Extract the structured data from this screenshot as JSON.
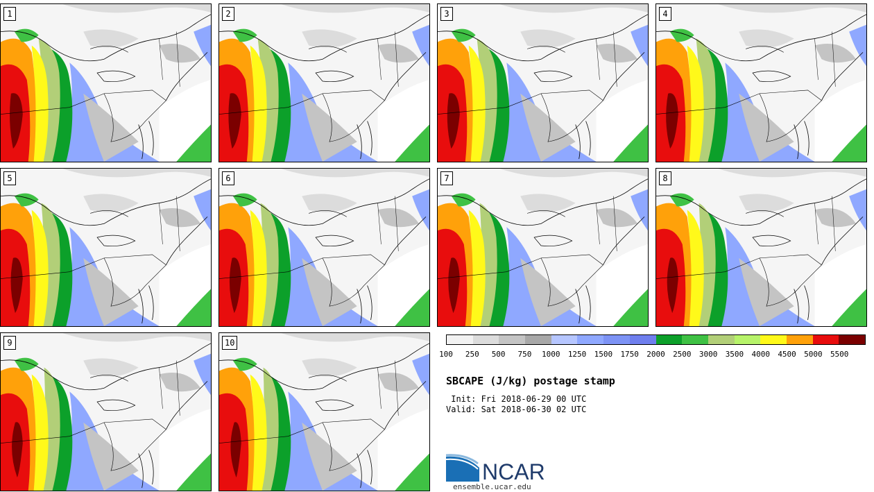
{
  "panels": [
    {
      "label": "1"
    },
    {
      "label": "2"
    },
    {
      "label": "3"
    },
    {
      "label": "4"
    },
    {
      "label": "5"
    },
    {
      "label": "6"
    },
    {
      "label": "7"
    },
    {
      "label": "8"
    },
    {
      "label": "9"
    },
    {
      "label": "10"
    }
  ],
  "colorbar": {
    "colors": [
      "#f2f2f2",
      "#dcdcdc",
      "#c4c4c4",
      "#a8a8a8",
      "#b6c6ff",
      "#8fa8ff",
      "#7d93f5",
      "#6f7fee",
      "#0ca02a",
      "#3fc144",
      "#b2cf78",
      "#b7f36a",
      "#fff91a",
      "#ffa10a",
      "#e80d0d",
      "#7b0000"
    ],
    "ticks": [
      "100",
      "250",
      "500",
      "750",
      "1000",
      "1250",
      "1500",
      "1750",
      "2000",
      "2500",
      "3000",
      "3500",
      "4000",
      "4500",
      "5000",
      "5500"
    ]
  },
  "title": "SBCAPE (J/kg) postage stamp",
  "init": " Init: Fri 2018-06-29 00 UTC",
  "valid": "Valid: Sat 2018-06-30 02 UTC",
  "logo": {
    "text": "NCAR",
    "url": "ensemble.ucar.edu"
  }
}
